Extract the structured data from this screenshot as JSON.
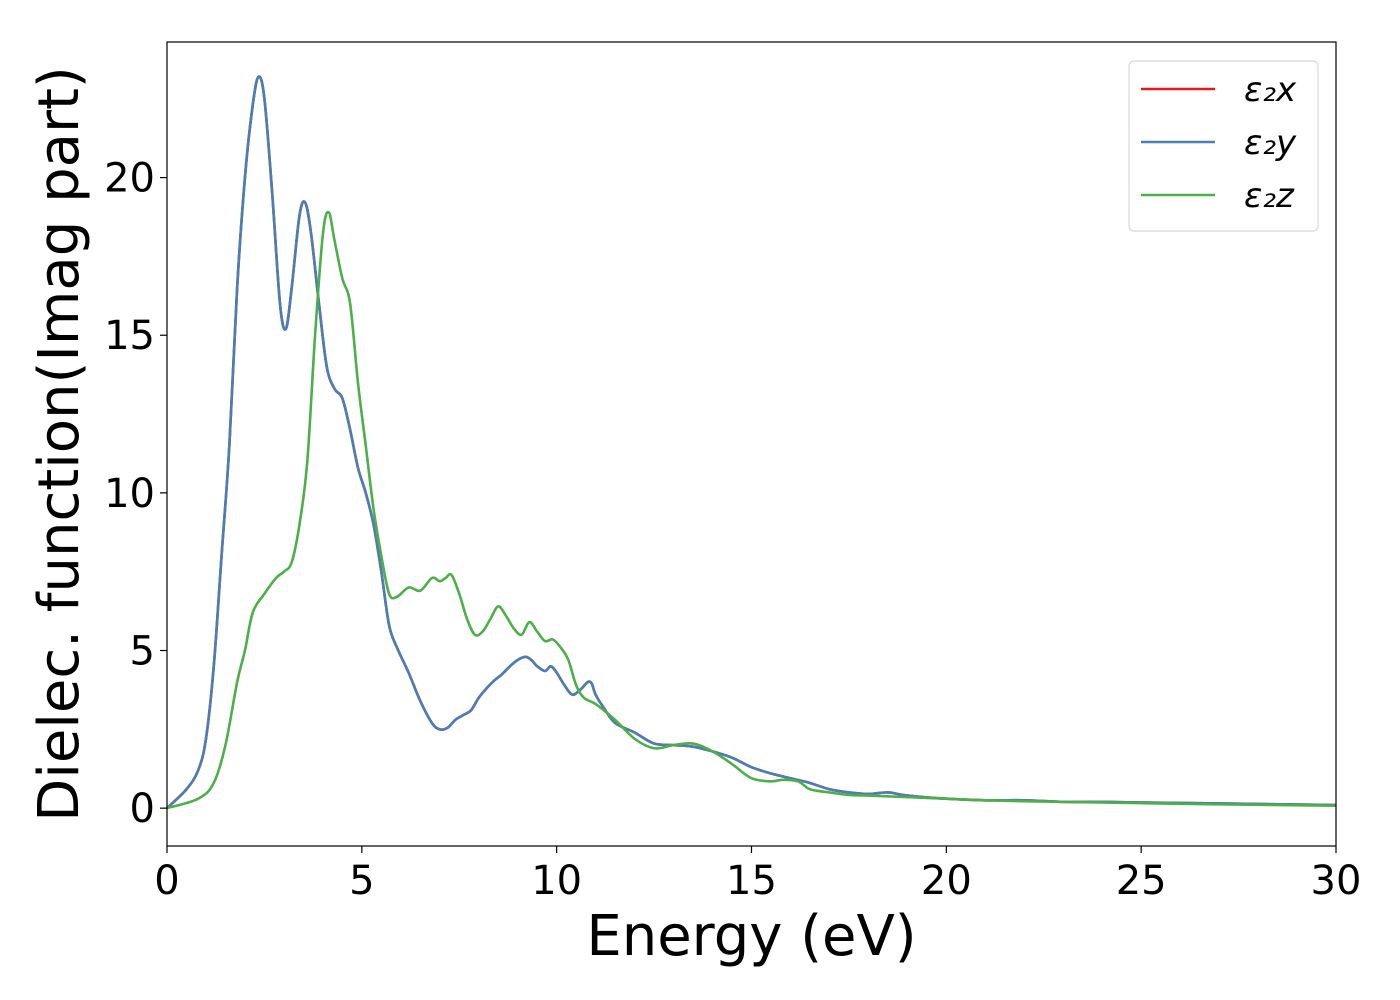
{
  "chart_data": {
    "type": "line",
    "title": "",
    "xlabel": "Energy (eV)",
    "ylabel": "Dielec. function(Imag part)",
    "xlim": [
      0,
      30
    ],
    "ylim": [
      -1.2,
      24.3
    ],
    "xticks": [
      0,
      5,
      10,
      15,
      20,
      25,
      30
    ],
    "yticks": [
      0,
      5,
      10,
      15,
      20
    ],
    "grid": false,
    "legend_position": "top-right",
    "series": [
      {
        "name": "ε₂x",
        "color": "#e41a1c",
        "x": [
          0,
          0.5,
          0.8,
          1.0,
          1.2,
          1.4,
          1.6,
          1.8,
          2.0,
          2.2,
          2.35,
          2.5,
          2.7,
          2.9,
          3.05,
          3.2,
          3.4,
          3.55,
          3.7,
          3.9,
          4.1,
          4.3,
          4.5,
          4.7,
          4.9,
          5.1,
          5.3,
          5.5,
          5.7,
          5.9,
          6.2,
          6.5,
          6.8,
          7.0,
          7.2,
          7.4,
          7.6,
          7.8,
          8.0,
          8.2,
          8.4,
          8.6,
          8.8,
          9.0,
          9.2,
          9.35,
          9.5,
          9.7,
          9.85,
          10.0,
          10.2,
          10.4,
          10.6,
          10.8,
          10.9,
          11.0,
          11.2,
          11.5,
          12.0,
          12.5,
          13.0,
          13.5,
          14.0,
          14.5,
          15.0,
          15.5,
          16.0,
          16.5,
          17.0,
          17.5,
          18.0,
          18.5,
          19.0,
          20.0,
          21.0,
          22.0,
          23.0,
          24.0,
          25.0,
          27.0,
          30.0
        ],
        "y": [
          0,
          0.6,
          1.2,
          2.2,
          4.5,
          8.0,
          11.5,
          16.5,
          20.0,
          22.3,
          23.2,
          22.5,
          19.5,
          16.0,
          15.2,
          16.5,
          18.8,
          19.2,
          18.2,
          16.0,
          14.0,
          13.3,
          13.0,
          12.0,
          10.8,
          10.0,
          9.0,
          7.5,
          5.8,
          5.1,
          4.3,
          3.4,
          2.7,
          2.5,
          2.55,
          2.8,
          2.95,
          3.1,
          3.5,
          3.8,
          4.05,
          4.25,
          4.5,
          4.7,
          4.8,
          4.7,
          4.5,
          4.35,
          4.5,
          4.3,
          3.9,
          3.6,
          3.75,
          4.0,
          3.95,
          3.6,
          3.2,
          2.7,
          2.4,
          2.05,
          2.0,
          1.95,
          1.8,
          1.6,
          1.3,
          1.1,
          0.95,
          0.8,
          0.6,
          0.5,
          0.45,
          0.5,
          0.4,
          0.3,
          0.25,
          0.25,
          0.2,
          0.2,
          0.18,
          0.15,
          0.1
        ]
      },
      {
        "name": "ε₂y",
        "color": "#4a7fb5",
        "x": [
          0,
          0.5,
          0.8,
          1.0,
          1.2,
          1.4,
          1.6,
          1.8,
          2.0,
          2.2,
          2.35,
          2.5,
          2.7,
          2.9,
          3.05,
          3.2,
          3.4,
          3.55,
          3.7,
          3.9,
          4.1,
          4.3,
          4.5,
          4.7,
          4.9,
          5.1,
          5.3,
          5.5,
          5.7,
          5.9,
          6.2,
          6.5,
          6.8,
          7.0,
          7.2,
          7.4,
          7.6,
          7.8,
          8.0,
          8.2,
          8.4,
          8.6,
          8.8,
          9.0,
          9.2,
          9.35,
          9.5,
          9.7,
          9.85,
          10.0,
          10.2,
          10.4,
          10.6,
          10.8,
          10.9,
          11.0,
          11.2,
          11.5,
          12.0,
          12.5,
          13.0,
          13.5,
          14.0,
          14.5,
          15.0,
          15.5,
          16.0,
          16.5,
          17.0,
          17.5,
          18.0,
          18.5,
          19.0,
          20.0,
          21.0,
          22.0,
          23.0,
          24.0,
          25.0,
          27.0,
          30.0
        ],
        "y": [
          0,
          0.6,
          1.2,
          2.2,
          4.5,
          8.0,
          11.5,
          16.5,
          20.0,
          22.3,
          23.2,
          22.5,
          19.5,
          16.0,
          15.2,
          16.5,
          18.8,
          19.2,
          18.2,
          16.0,
          14.0,
          13.3,
          13.0,
          12.0,
          10.8,
          10.0,
          9.0,
          7.5,
          5.8,
          5.1,
          4.3,
          3.4,
          2.7,
          2.5,
          2.55,
          2.8,
          2.95,
          3.1,
          3.5,
          3.8,
          4.05,
          4.25,
          4.5,
          4.7,
          4.8,
          4.7,
          4.5,
          4.35,
          4.5,
          4.3,
          3.9,
          3.6,
          3.75,
          4.0,
          3.95,
          3.6,
          3.2,
          2.7,
          2.4,
          2.05,
          2.0,
          1.95,
          1.8,
          1.6,
          1.3,
          1.1,
          0.95,
          0.8,
          0.6,
          0.5,
          0.45,
          0.5,
          0.4,
          0.3,
          0.25,
          0.25,
          0.2,
          0.2,
          0.18,
          0.15,
          0.1
        ]
      },
      {
        "name": "ε₂z",
        "color": "#4daf4a",
        "x": [
          0,
          0.8,
          1.2,
          1.5,
          1.8,
          2.0,
          2.2,
          2.5,
          2.8,
          3.0,
          3.2,
          3.4,
          3.6,
          3.8,
          4.0,
          4.15,
          4.3,
          4.5,
          4.7,
          4.9,
          5.1,
          5.3,
          5.5,
          5.7,
          5.9,
          6.2,
          6.5,
          6.8,
          7.0,
          7.15,
          7.3,
          7.5,
          7.7,
          7.9,
          8.1,
          8.3,
          8.5,
          8.7,
          8.9,
          9.1,
          9.3,
          9.5,
          9.7,
          9.9,
          10.1,
          10.3,
          10.5,
          10.7,
          11.0,
          11.5,
          12.0,
          12.5,
          13.0,
          13.5,
          14.0,
          14.5,
          15.0,
          15.5,
          15.8,
          16.2,
          16.5,
          17.0,
          17.5,
          18.0,
          19.0,
          20.0,
          21.0,
          22.0,
          23.0,
          25.0,
          27.0,
          30.0
        ],
        "y": [
          0,
          0.3,
          0.8,
          2.0,
          4.0,
          5.0,
          6.2,
          6.8,
          7.3,
          7.5,
          7.8,
          9.0,
          11.0,
          15.0,
          18.2,
          18.9,
          18.0,
          16.8,
          16.0,
          13.5,
          11.5,
          9.5,
          8.0,
          6.8,
          6.7,
          7.0,
          6.9,
          7.3,
          7.2,
          7.3,
          7.4,
          6.8,
          6.0,
          5.5,
          5.6,
          6.0,
          6.4,
          6.1,
          5.7,
          5.5,
          5.9,
          5.6,
          5.3,
          5.35,
          5.1,
          4.7,
          3.9,
          3.5,
          3.3,
          2.8,
          2.2,
          1.9,
          2.0,
          2.05,
          1.8,
          1.4,
          0.95,
          0.85,
          0.9,
          0.85,
          0.6,
          0.5,
          0.42,
          0.4,
          0.35,
          0.3,
          0.25,
          0.22,
          0.2,
          0.16,
          0.12,
          0.08
        ]
      }
    ]
  }
}
